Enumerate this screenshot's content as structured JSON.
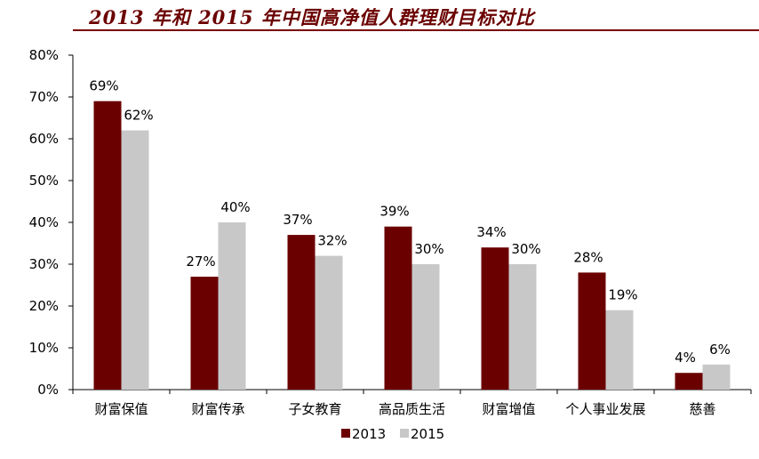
{
  "title": "2013 年和 2015 年中国高净值人群理财目标对比",
  "chart_data": {
    "type": "bar",
    "title": "2013 年和 2015 年中国高净值人群理财目标对比",
    "categories": [
      "财富保值",
      "财富传承",
      "子女教育",
      "高品质生活",
      "财富增值",
      "个人事业发展",
      "慈善"
    ],
    "series": [
      {
        "name": "2013",
        "values": [
          69,
          27,
          37,
          39,
          34,
          28,
          4
        ],
        "color": "#6b0000"
      },
      {
        "name": "2015",
        "values": [
          62,
          40,
          32,
          30,
          30,
          19,
          6
        ],
        "color": "#c8c8c8"
      }
    ],
    "ylim": [
      0,
      80
    ],
    "yticks": [
      0,
      10,
      20,
      30,
      40,
      50,
      60,
      70,
      80
    ],
    "tick_suffix": "%",
    "data_label_suffix": "%",
    "grid": false,
    "legend_position": "bottom"
  }
}
